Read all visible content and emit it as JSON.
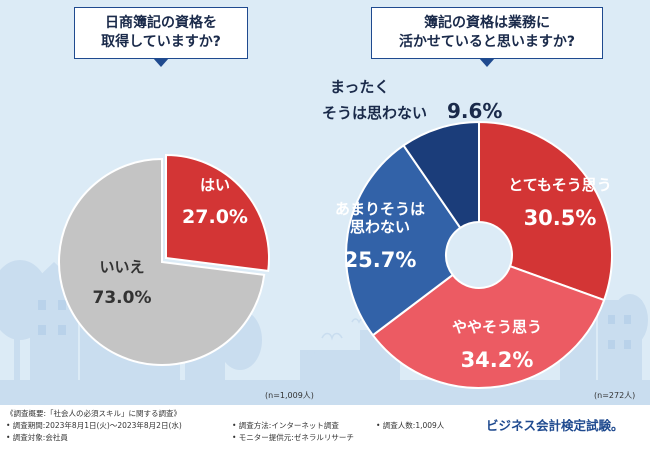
{
  "questions": {
    "q1_line1": "日商簿記の資格を",
    "q1_line2": "取得していますか?",
    "q2_line1": "簿記の資格は業務に",
    "q2_line2": "活かせていると思いますか?"
  },
  "chart_data": [
    {
      "type": "pie",
      "title": "日商簿記の資格を取得していますか?",
      "note": "(n=1,009人)",
      "slices": [
        {
          "label": "はい",
          "value": 27.0,
          "display": "27.0%",
          "color": "#d33535"
        },
        {
          "label": "いいえ",
          "value": 73.0,
          "display": "73.0%",
          "color": "#c4c4c4"
        }
      ]
    },
    {
      "type": "pie",
      "donut": true,
      "title": "簿記の資格は業務に活かせていると思いますか?",
      "note": "(n=272人)",
      "slices": [
        {
          "label": "とてもそう思う",
          "label_lines": [
            "とてもそう思う"
          ],
          "value": 30.5,
          "display": "30.5%",
          "color": "#d33535"
        },
        {
          "label": "ややそう思う",
          "label_lines": [
            "ややそう思う"
          ],
          "value": 34.2,
          "display": "34.2%",
          "color": "#ec5b63"
        },
        {
          "label": "あまりそうは思わない",
          "label_lines": [
            "あまりそうは",
            "思わない"
          ],
          "value": 25.7,
          "display": "25.7%",
          "color": "#3262a8"
        },
        {
          "label": "まったくそうは思わない",
          "label_lines": [
            "まったく",
            "そうは思わない"
          ],
          "value": 9.6,
          "display": "9.6%",
          "color": "#1b3d7a"
        }
      ]
    }
  ],
  "footer": {
    "survey_name": "《調査概要:「社会人の必須スキル」に関する調査》",
    "period": "• 調査期間:2023年8月1日(火)〜2023年8月2日(水)",
    "target": "• 調査対象:会社員",
    "method": "• 調査方法:インターネット調査",
    "provider": "• モニター提供元:ゼネラルリサーチ",
    "count": "• 調査人数:1,009人",
    "brand": "ビジネス会計検定試験。"
  },
  "colors": {
    "navy": "#1f4a8f",
    "red": "#d33535",
    "gray": "#c4c4c4",
    "background": "#dcebf6"
  }
}
